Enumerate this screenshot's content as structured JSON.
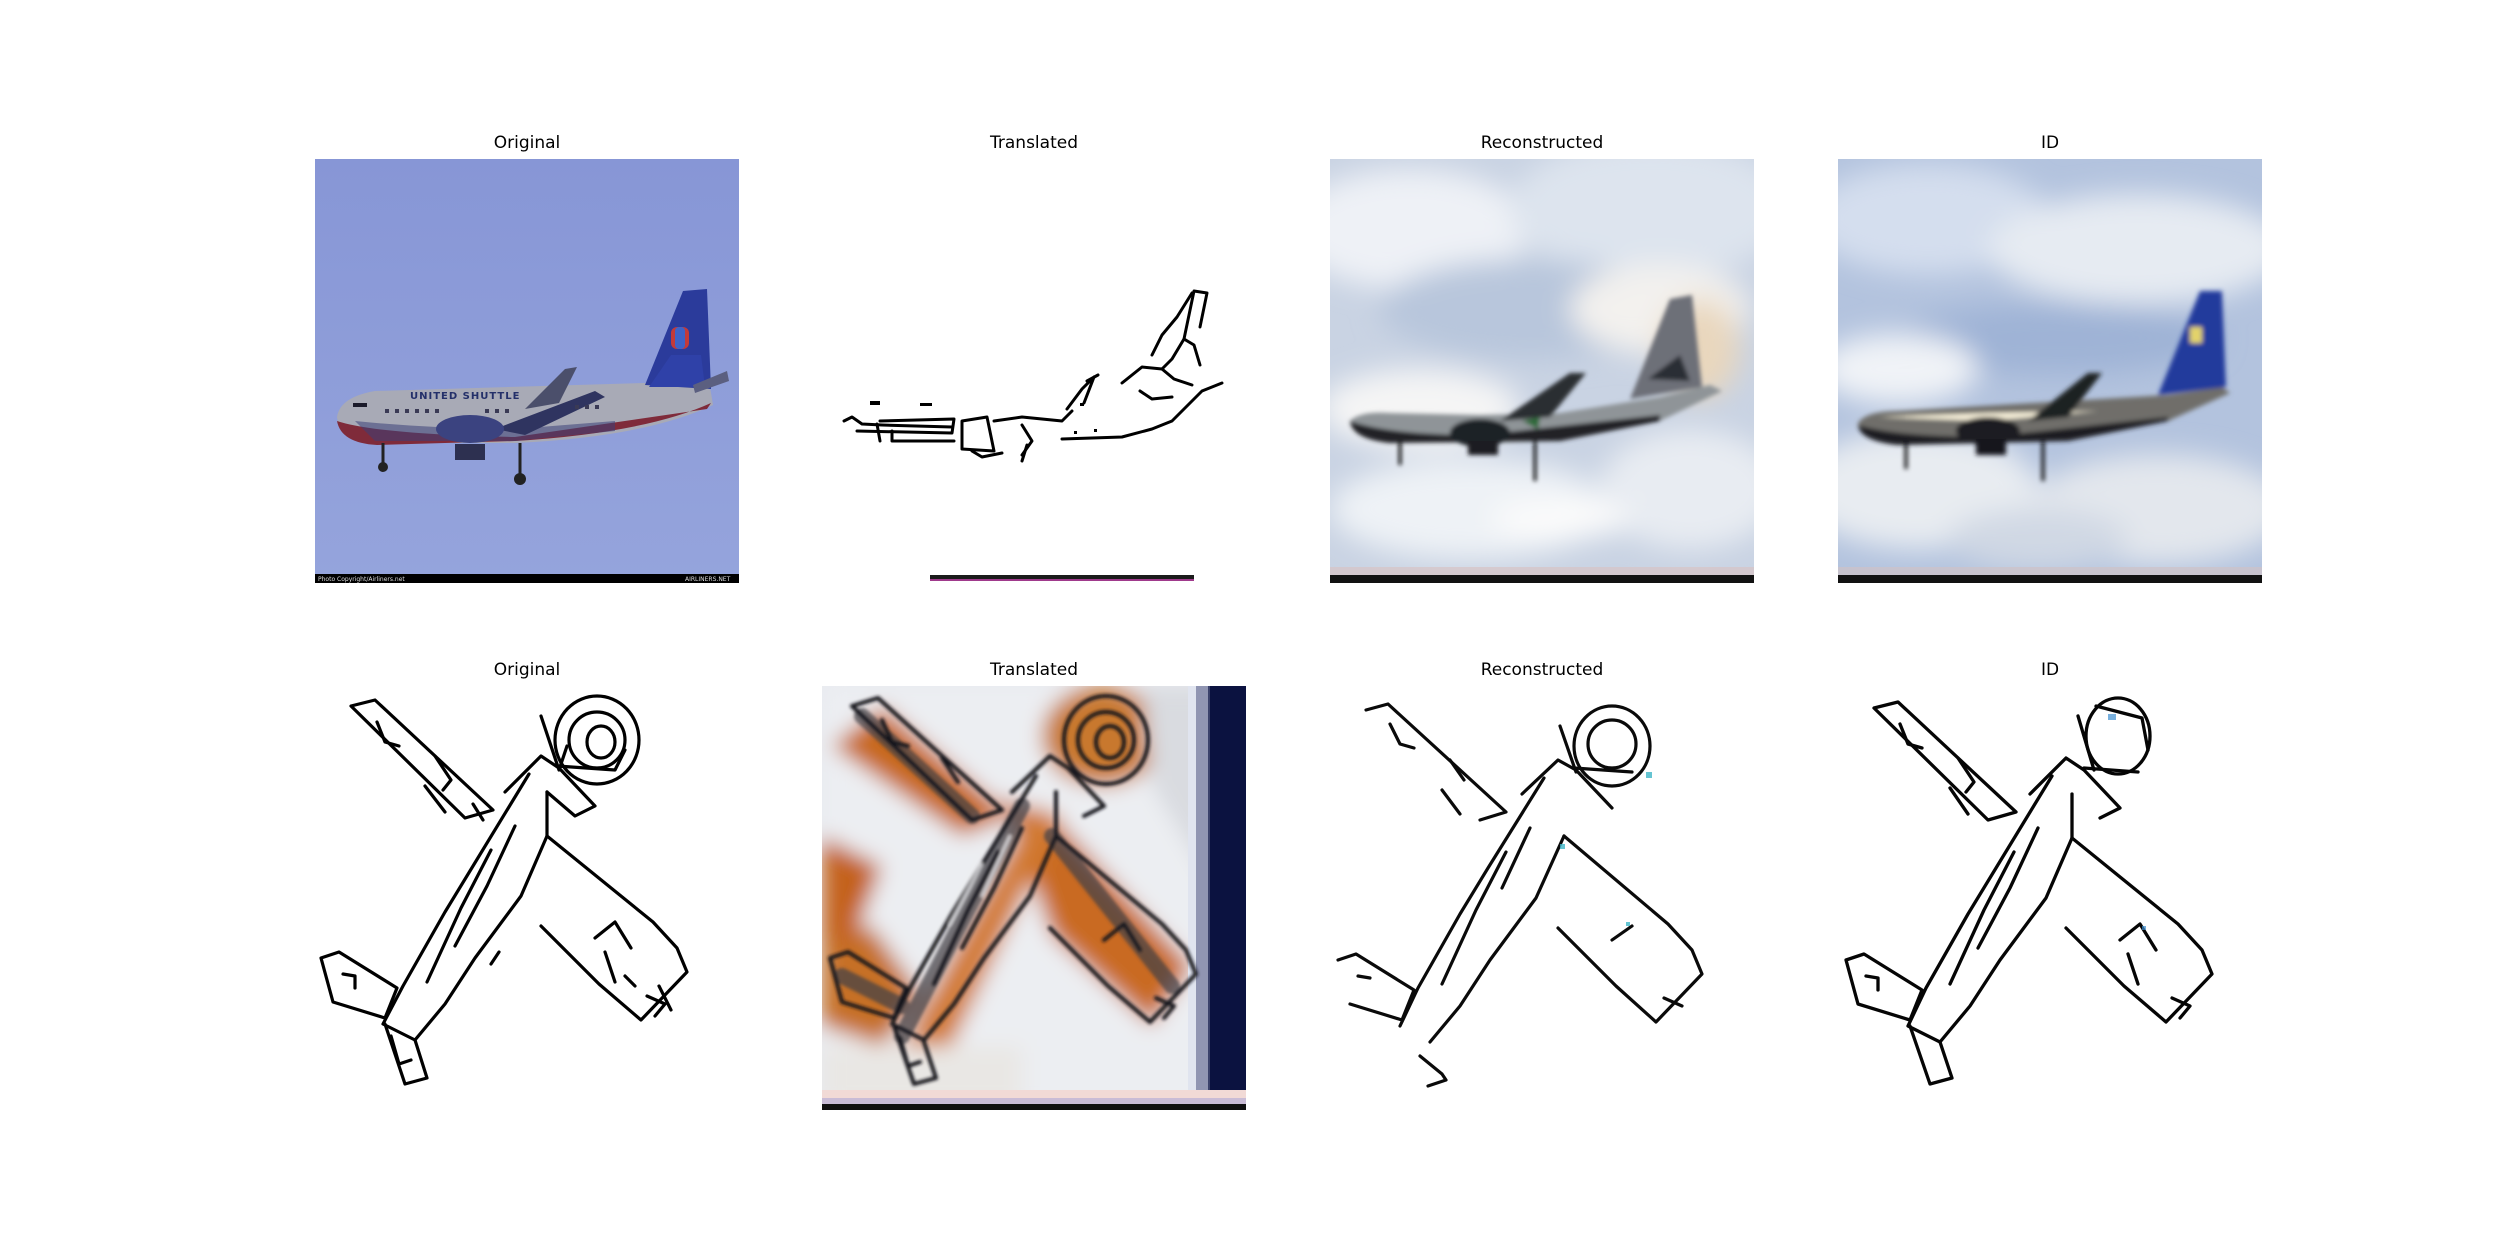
{
  "figure": {
    "rows": [
      {
        "panels": [
          {
            "title": "Original",
            "kind": "photo-airliner"
          },
          {
            "title": "Translated",
            "kind": "sketch-airliner"
          },
          {
            "title": "Reconstructed",
            "kind": "blurry-airliner"
          },
          {
            "title": "ID",
            "kind": "blurry-airliner-blue-tail"
          }
        ]
      },
      {
        "panels": [
          {
            "title": "Original",
            "kind": "sketch-propeller-plane"
          },
          {
            "title": "Translated",
            "kind": "painted-propeller-plane"
          },
          {
            "title": "Reconstructed",
            "kind": "sketch-propeller-plane"
          },
          {
            "title": "ID",
            "kind": "sketch-propeller-plane"
          }
        ]
      }
    ],
    "photo_caption_left": "Photo Copyright/Airliners.net",
    "photo_caption_right": "AIRLINERS.NET",
    "livery_text": "UNITED SHUTTLE",
    "colors": {
      "sky": "#8a9bd8",
      "tail_blue": "#2a3a98",
      "fuselage": "#a7a9b5",
      "ink": "#000000",
      "orange": "#c8661e",
      "navy_stripe": "#0c1240"
    }
  }
}
